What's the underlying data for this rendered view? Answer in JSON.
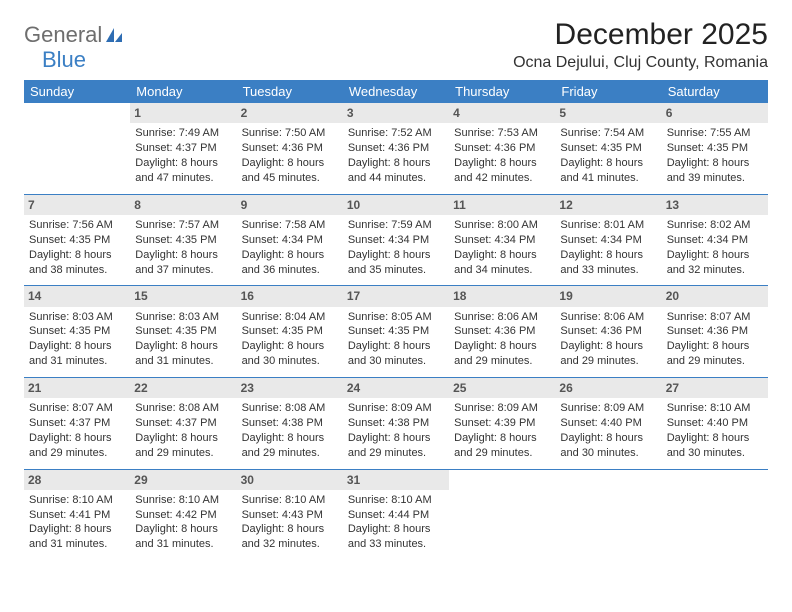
{
  "brand": {
    "part1": "General",
    "part2": "Blue"
  },
  "title": "December 2025",
  "location": "Ocna Dejului, Cluj County, Romania",
  "colors": {
    "accent": "#3b7fc4",
    "header_bg": "#3b7fc4",
    "daynum_bg": "#e9e9e9"
  },
  "weekdays": [
    "Sunday",
    "Monday",
    "Tuesday",
    "Wednesday",
    "Thursday",
    "Friday",
    "Saturday"
  ],
  "weeks": [
    [
      null,
      {
        "n": "1",
        "sr": "Sunrise: 7:49 AM",
        "ss": "Sunset: 4:37 PM",
        "dl": "Daylight: 8 hours and 47 minutes."
      },
      {
        "n": "2",
        "sr": "Sunrise: 7:50 AM",
        "ss": "Sunset: 4:36 PM",
        "dl": "Daylight: 8 hours and 45 minutes."
      },
      {
        "n": "3",
        "sr": "Sunrise: 7:52 AM",
        "ss": "Sunset: 4:36 PM",
        "dl": "Daylight: 8 hours and 44 minutes."
      },
      {
        "n": "4",
        "sr": "Sunrise: 7:53 AM",
        "ss": "Sunset: 4:36 PM",
        "dl": "Daylight: 8 hours and 42 minutes."
      },
      {
        "n": "5",
        "sr": "Sunrise: 7:54 AM",
        "ss": "Sunset: 4:35 PM",
        "dl": "Daylight: 8 hours and 41 minutes."
      },
      {
        "n": "6",
        "sr": "Sunrise: 7:55 AM",
        "ss": "Sunset: 4:35 PM",
        "dl": "Daylight: 8 hours and 39 minutes."
      }
    ],
    [
      {
        "n": "7",
        "sr": "Sunrise: 7:56 AM",
        "ss": "Sunset: 4:35 PM",
        "dl": "Daylight: 8 hours and 38 minutes."
      },
      {
        "n": "8",
        "sr": "Sunrise: 7:57 AM",
        "ss": "Sunset: 4:35 PM",
        "dl": "Daylight: 8 hours and 37 minutes."
      },
      {
        "n": "9",
        "sr": "Sunrise: 7:58 AM",
        "ss": "Sunset: 4:34 PM",
        "dl": "Daylight: 8 hours and 36 minutes."
      },
      {
        "n": "10",
        "sr": "Sunrise: 7:59 AM",
        "ss": "Sunset: 4:34 PM",
        "dl": "Daylight: 8 hours and 35 minutes."
      },
      {
        "n": "11",
        "sr": "Sunrise: 8:00 AM",
        "ss": "Sunset: 4:34 PM",
        "dl": "Daylight: 8 hours and 34 minutes."
      },
      {
        "n": "12",
        "sr": "Sunrise: 8:01 AM",
        "ss": "Sunset: 4:34 PM",
        "dl": "Daylight: 8 hours and 33 minutes."
      },
      {
        "n": "13",
        "sr": "Sunrise: 8:02 AM",
        "ss": "Sunset: 4:34 PM",
        "dl": "Daylight: 8 hours and 32 minutes."
      }
    ],
    [
      {
        "n": "14",
        "sr": "Sunrise: 8:03 AM",
        "ss": "Sunset: 4:35 PM",
        "dl": "Daylight: 8 hours and 31 minutes."
      },
      {
        "n": "15",
        "sr": "Sunrise: 8:03 AM",
        "ss": "Sunset: 4:35 PM",
        "dl": "Daylight: 8 hours and 31 minutes."
      },
      {
        "n": "16",
        "sr": "Sunrise: 8:04 AM",
        "ss": "Sunset: 4:35 PM",
        "dl": "Daylight: 8 hours and 30 minutes."
      },
      {
        "n": "17",
        "sr": "Sunrise: 8:05 AM",
        "ss": "Sunset: 4:35 PM",
        "dl": "Daylight: 8 hours and 30 minutes."
      },
      {
        "n": "18",
        "sr": "Sunrise: 8:06 AM",
        "ss": "Sunset: 4:36 PM",
        "dl": "Daylight: 8 hours and 29 minutes."
      },
      {
        "n": "19",
        "sr": "Sunrise: 8:06 AM",
        "ss": "Sunset: 4:36 PM",
        "dl": "Daylight: 8 hours and 29 minutes."
      },
      {
        "n": "20",
        "sr": "Sunrise: 8:07 AM",
        "ss": "Sunset: 4:36 PM",
        "dl": "Daylight: 8 hours and 29 minutes."
      }
    ],
    [
      {
        "n": "21",
        "sr": "Sunrise: 8:07 AM",
        "ss": "Sunset: 4:37 PM",
        "dl": "Daylight: 8 hours and 29 minutes."
      },
      {
        "n": "22",
        "sr": "Sunrise: 8:08 AM",
        "ss": "Sunset: 4:37 PM",
        "dl": "Daylight: 8 hours and 29 minutes."
      },
      {
        "n": "23",
        "sr": "Sunrise: 8:08 AM",
        "ss": "Sunset: 4:38 PM",
        "dl": "Daylight: 8 hours and 29 minutes."
      },
      {
        "n": "24",
        "sr": "Sunrise: 8:09 AM",
        "ss": "Sunset: 4:38 PM",
        "dl": "Daylight: 8 hours and 29 minutes."
      },
      {
        "n": "25",
        "sr": "Sunrise: 8:09 AM",
        "ss": "Sunset: 4:39 PM",
        "dl": "Daylight: 8 hours and 29 minutes."
      },
      {
        "n": "26",
        "sr": "Sunrise: 8:09 AM",
        "ss": "Sunset: 4:40 PM",
        "dl": "Daylight: 8 hours and 30 minutes."
      },
      {
        "n": "27",
        "sr": "Sunrise: 8:10 AM",
        "ss": "Sunset: 4:40 PM",
        "dl": "Daylight: 8 hours and 30 minutes."
      }
    ],
    [
      {
        "n": "28",
        "sr": "Sunrise: 8:10 AM",
        "ss": "Sunset: 4:41 PM",
        "dl": "Daylight: 8 hours and 31 minutes."
      },
      {
        "n": "29",
        "sr": "Sunrise: 8:10 AM",
        "ss": "Sunset: 4:42 PM",
        "dl": "Daylight: 8 hours and 31 minutes."
      },
      {
        "n": "30",
        "sr": "Sunrise: 8:10 AM",
        "ss": "Sunset: 4:43 PM",
        "dl": "Daylight: 8 hours and 32 minutes."
      },
      {
        "n": "31",
        "sr": "Sunrise: 8:10 AM",
        "ss": "Sunset: 4:44 PM",
        "dl": "Daylight: 8 hours and 33 minutes."
      },
      null,
      null,
      null
    ]
  ]
}
